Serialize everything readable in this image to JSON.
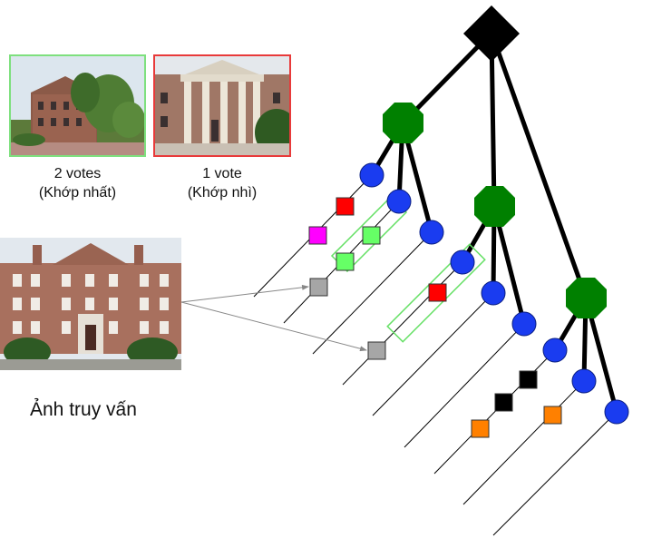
{
  "results": [
    {
      "votes": "2 votes",
      "rank": "(Khớp nhất)",
      "border_color": "#7ee07e"
    },
    {
      "votes": "1 vote",
      "rank": "(Khớp nhì)",
      "border_color": "#e83a3a"
    }
  ],
  "query": {
    "label": "Ảnh truy vấn"
  },
  "colors": {
    "root": "#000000",
    "internal": "#008000",
    "leaf": "#1a3cf0",
    "red": "#ff0000",
    "magenta": "#ff00ff",
    "light_green": "#66ff66",
    "gray": "#a6a6a6",
    "black": "#000000",
    "orange": "#ff8000",
    "highlight": "#66e066"
  }
}
